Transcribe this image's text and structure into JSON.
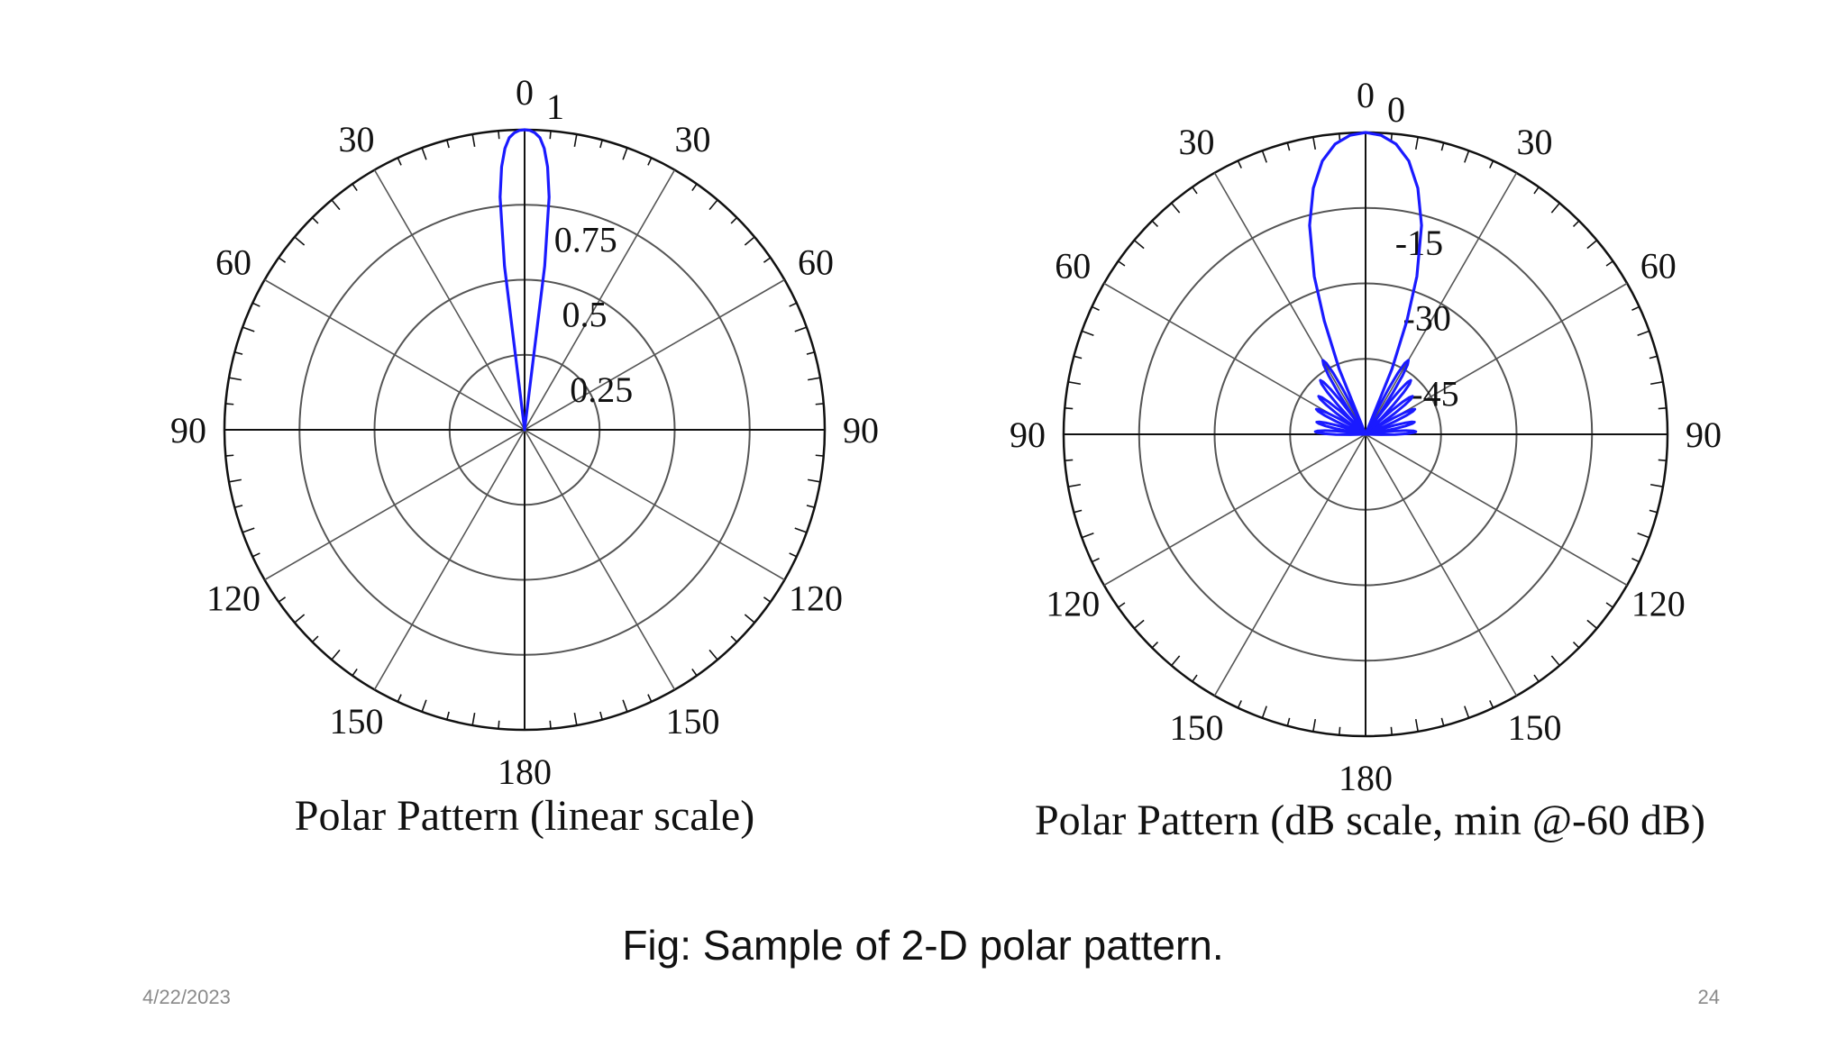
{
  "slide": {
    "caption": "Fig: Sample of 2-D polar pattern.",
    "date": "4/22/2023",
    "page_number": "24"
  },
  "colors": {
    "pattern": "#1a1aff",
    "grid": "#555555",
    "axis": "#111111"
  },
  "chart_data": [
    {
      "type": "polar",
      "title": "Polar Pattern (linear scale)",
      "angle_labels": [
        "0",
        "30",
        "60",
        "90",
        "120",
        "150",
        "180",
        "150",
        "120",
        "90",
        "60",
        "30"
      ],
      "radial_labels": [
        "1",
        "0.75",
        "0.5",
        "0.25"
      ],
      "radial_range": [
        0,
        1
      ],
      "pattern_points": [
        {
          "angle": -8,
          "r": 0.0
        },
        {
          "angle": -7,
          "r": 0.55
        },
        {
          "angle": -6,
          "r": 0.78
        },
        {
          "angle": -5,
          "r": 0.88
        },
        {
          "angle": -4,
          "r": 0.94
        },
        {
          "angle": -3,
          "r": 0.975
        },
        {
          "angle": -2,
          "r": 0.99
        },
        {
          "angle": -1,
          "r": 0.998
        },
        {
          "angle": 0,
          "r": 1.0
        },
        {
          "angle": 1,
          "r": 0.998
        },
        {
          "angle": 2,
          "r": 0.99
        },
        {
          "angle": 3,
          "r": 0.975
        },
        {
          "angle": 4,
          "r": 0.94
        },
        {
          "angle": 5,
          "r": 0.88
        },
        {
          "angle": 6,
          "r": 0.78
        },
        {
          "angle": 7,
          "r": 0.55
        },
        {
          "angle": 8,
          "r": 0.0
        }
      ]
    },
    {
      "type": "polar",
      "title": "Polar Pattern (dB scale, min @-60 dB)",
      "angle_labels": [
        "0",
        "30",
        "60",
        "90",
        "120",
        "150",
        "180",
        "150",
        "120",
        "90",
        "60",
        "30"
      ],
      "radial_labels": [
        "0",
        "-15",
        "-30",
        "-45"
      ],
      "radial_range": [
        -60,
        0
      ],
      "main_lobe": [
        {
          "angle": -25,
          "db": -60
        },
        {
          "angle": -22,
          "db": -46
        },
        {
          "angle": -20,
          "db": -36
        },
        {
          "angle": -18,
          "db": -27
        },
        {
          "angle": -15,
          "db": -17
        },
        {
          "angle": -12,
          "db": -10
        },
        {
          "angle": -9,
          "db": -5
        },
        {
          "angle": -6,
          "db": -2
        },
        {
          "angle": -3,
          "db": -0.5
        },
        {
          "angle": 0,
          "db": 0
        },
        {
          "angle": 3,
          "db": -0.5
        },
        {
          "angle": 6,
          "db": -2
        },
        {
          "angle": 9,
          "db": -5
        },
        {
          "angle": 12,
          "db": -10
        },
        {
          "angle": 15,
          "db": -17
        },
        {
          "angle": 18,
          "db": -27
        },
        {
          "angle": 20,
          "db": -36
        },
        {
          "angle": 22,
          "db": -46
        },
        {
          "angle": 25,
          "db": -60
        }
      ],
      "side_lobes": [
        {
          "center": 30,
          "peak_db": -43
        },
        {
          "center": 40,
          "peak_db": -46
        },
        {
          "center": 51,
          "peak_db": -48
        },
        {
          "center": 63,
          "peak_db": -49
        },
        {
          "center": 76,
          "peak_db": -50
        },
        {
          "center": 87,
          "peak_db": -50
        }
      ]
    }
  ]
}
